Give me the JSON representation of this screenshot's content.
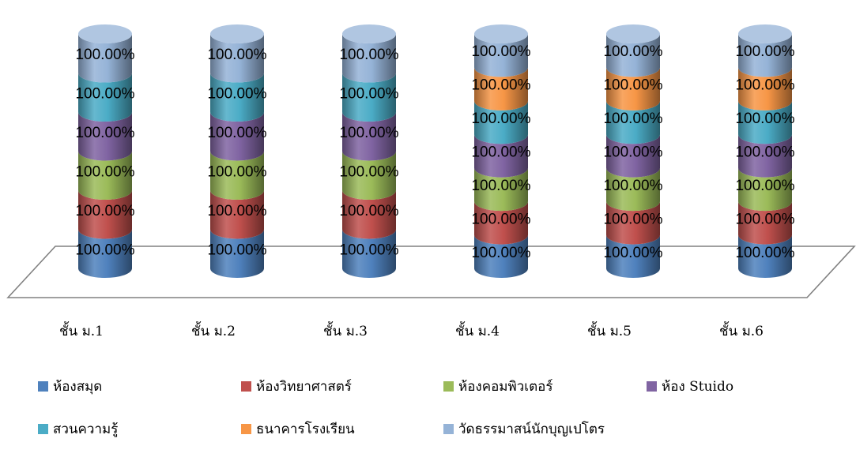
{
  "chart_data": {
    "type": "bar",
    "stacked": true,
    "style": "3d-cylinder",
    "categories": [
      "ชั้น ม.1",
      "ชั้น ม.2",
      "ชั้น ม.3",
      "ชั้น ม.4",
      "ชั้น ม.5",
      "ชั้น ม.6"
    ],
    "series": [
      {
        "name": "ห้องสมุด",
        "color": "#4F81BD",
        "values": [
          100,
          100,
          100,
          100,
          100,
          100
        ],
        "labels": [
          "100.00%",
          "100.00%",
          "100.00%",
          "100.00%",
          "100.00%",
          "100.00%"
        ]
      },
      {
        "name": "ห้องวิทยาศาสตร์",
        "color": "#C0504D",
        "values": [
          100,
          100,
          100,
          100,
          100,
          100
        ],
        "labels": [
          "100.00%",
          "100.00%",
          "100.00%",
          "100.00%",
          "100.00%",
          "100.00%"
        ]
      },
      {
        "name": "ห้องคอมพิวเตอร์",
        "color": "#9BBB59",
        "values": [
          100,
          100,
          100,
          100,
          100,
          100
        ],
        "labels": [
          "100.00%",
          "100.00%",
          "100.00%",
          "100.00%",
          "100.00%",
          "100.00%"
        ]
      },
      {
        "name": "ห้อง Stuido",
        "color": "#8064A2",
        "values": [
          100,
          100,
          100,
          100,
          100,
          100
        ],
        "labels": [
          "100.00%",
          "100.00%",
          "100.00%",
          "100.00%",
          "100.00%",
          "100.00%"
        ]
      },
      {
        "name": "สวนความรู้",
        "color": "#4BACC6",
        "values": [
          100,
          100,
          100,
          100,
          100,
          100
        ],
        "labels": [
          "100.00%",
          "100.00%",
          "100.00%",
          "100.00%",
          "100.00%",
          "100.00%"
        ]
      },
      {
        "name": "ธนาคารโรงเรียน",
        "color": "#F79646",
        "values": [
          null,
          null,
          null,
          100,
          100,
          100
        ],
        "labels": [
          "",
          "",
          "",
          "100.00%",
          "100.00%",
          "100.00%"
        ]
      },
      {
        "name": "วัดธรรมาสน์นักบุญเปโตร",
        "color": "#95B3D7",
        "values": [
          100,
          100,
          100,
          100,
          100,
          100
        ],
        "labels": [
          "100.00%",
          "100.00%",
          "100.00%",
          "100.00%",
          "100.00%",
          "100.00%"
        ]
      }
    ],
    "legend": "bottom",
    "grid": false
  }
}
